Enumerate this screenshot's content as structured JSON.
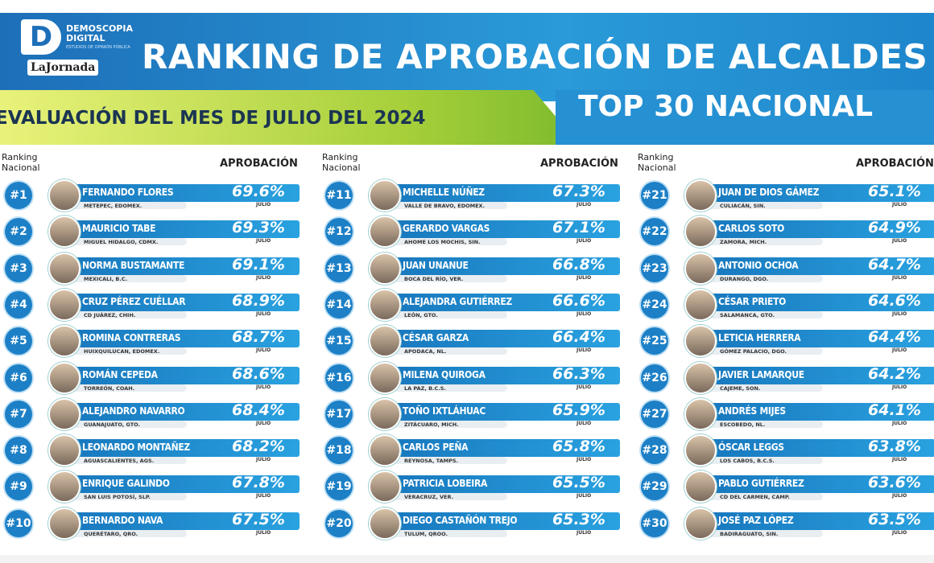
{
  "header": {
    "brand": "DEMOSCOPIA DIGITAL",
    "brand_tagline": "ESTUDIOS DE OPINIÓN PÚBLICA",
    "partner": "LaJornada",
    "title": "RANKING DE APROBACIÓN DE ALCALDES",
    "subtitle": "EVALUACIÓN DEL MES DE JULIO DEL 2024",
    "badge": "TOP 30 NACIONAL"
  },
  "columns": {
    "rank": "Ranking Nacional",
    "approval": "APROBACIÓN"
  },
  "period": "JULIO",
  "entries": [
    {
      "rank": "#1",
      "name": "FERNANDO FLORES",
      "place": "METEPEC, EDOMEX.",
      "approval": "69.6%"
    },
    {
      "rank": "#2",
      "name": "MAURICIO TABE",
      "place": "MIGUEL HIDALGO, CDMX.",
      "approval": "69.3%"
    },
    {
      "rank": "#3",
      "name": "NORMA BUSTAMANTE",
      "place": "MEXICALI, B.C.",
      "approval": "69.1%"
    },
    {
      "rank": "#4",
      "name": "CRUZ PÉREZ CUÉLLAR",
      "place": "CD JUÁREZ, CHIH.",
      "approval": "68.9%"
    },
    {
      "rank": "#5",
      "name": "ROMINA CONTRERAS",
      "place": "HUIXQUILUCAN, EDOMEX.",
      "approval": "68.7%"
    },
    {
      "rank": "#6",
      "name": "ROMÁN CEPEDA",
      "place": "TORREÓN, COAH.",
      "approval": "68.6%"
    },
    {
      "rank": "#7",
      "name": "ALEJANDRO NAVARRO",
      "place": "GUANAJUATO, GTO.",
      "approval": "68.4%"
    },
    {
      "rank": "#8",
      "name": "LEONARDO MONTAÑEZ",
      "place": "AGUASCALIENTES, AGS.",
      "approval": "68.2%"
    },
    {
      "rank": "#9",
      "name": "ENRIQUE GALINDO",
      "place": "SAN LUIS POTOSÍ, SLP.",
      "approval": "67.8%"
    },
    {
      "rank": "#10",
      "name": "BERNARDO NAVA",
      "place": "QUERÉTARO, QRO.",
      "approval": "67.5%"
    },
    {
      "rank": "#11",
      "name": "MICHELLE NÚÑEZ",
      "place": "VALLE DE BRAVO, EDOMEX.",
      "approval": "67.3%"
    },
    {
      "rank": "#12",
      "name": "GERARDO VARGAS",
      "place": "AHOME LOS MOCHIS, SIN.",
      "approval": "67.1%"
    },
    {
      "rank": "#13",
      "name": "JUAN UNANUE",
      "place": "BOCA DEL RÍO, VER.",
      "approval": "66.8%"
    },
    {
      "rank": "#14",
      "name": "ALEJANDRA GUTIÉRREZ",
      "place": "LEÓN, GTO.",
      "approval": "66.6%"
    },
    {
      "rank": "#15",
      "name": "CÉSAR GARZA",
      "place": "APODACA, NL.",
      "approval": "66.4%"
    },
    {
      "rank": "#16",
      "name": "MILENA QUIROGA",
      "place": "LA PAZ, B.C.S.",
      "approval": "66.3%"
    },
    {
      "rank": "#17",
      "name": "TOÑO IXTLÁHUAC",
      "place": "ZITÁCUARO, MICH.",
      "approval": "65.9%"
    },
    {
      "rank": "#18",
      "name": "CARLOS PEÑA",
      "place": "REYNOSA, TAMPS.",
      "approval": "65.8%"
    },
    {
      "rank": "#19",
      "name": "PATRICIA LOBEIRA",
      "place": "VERACRUZ, VER.",
      "approval": "65.5%"
    },
    {
      "rank": "#20",
      "name": "DIEGO CASTAÑÓN TREJO",
      "place": "TULUM, QROO.",
      "approval": "65.3%"
    },
    {
      "rank": "#21",
      "name": "JUAN DE DIOS GÁMEZ",
      "place": "CULIACÁN, SIN.",
      "approval": "65.1%"
    },
    {
      "rank": "#22",
      "name": "CARLOS SOTO",
      "place": "ZAMORA, MICH.",
      "approval": "64.9%"
    },
    {
      "rank": "#23",
      "name": "ANTONIO OCHOA",
      "place": "DURANGO, DGO.",
      "approval": "64.7%"
    },
    {
      "rank": "#24",
      "name": "CÉSAR PRIETO",
      "place": "SALAMANCA, GTO.",
      "approval": "64.6%"
    },
    {
      "rank": "#25",
      "name": "LETICIA HERRERA",
      "place": "GÓMEZ PALACIO, DGO.",
      "approval": "64.4%"
    },
    {
      "rank": "#26",
      "name": "JAVIER LAMARQUE",
      "place": "CAJEME, SON.",
      "approval": "64.2%"
    },
    {
      "rank": "#27",
      "name": "ANDRÉS MIJES",
      "place": "ESCOBEDO, NL.",
      "approval": "64.1%"
    },
    {
      "rank": "#28",
      "name": "ÓSCAR LEGGS",
      "place": "LOS CABOS, B.C.S.",
      "approval": "63.8%"
    },
    {
      "rank": "#29",
      "name": "PABLO GUTIÉRREZ",
      "place": "CD DEL CARMEN, CAMP.",
      "approval": "63.6%"
    },
    {
      "rank": "#30",
      "name": "JOSÉ PAZ LÓPEZ",
      "place": "BADIRAGUATO, SIN.",
      "approval": "63.5%"
    }
  ]
}
